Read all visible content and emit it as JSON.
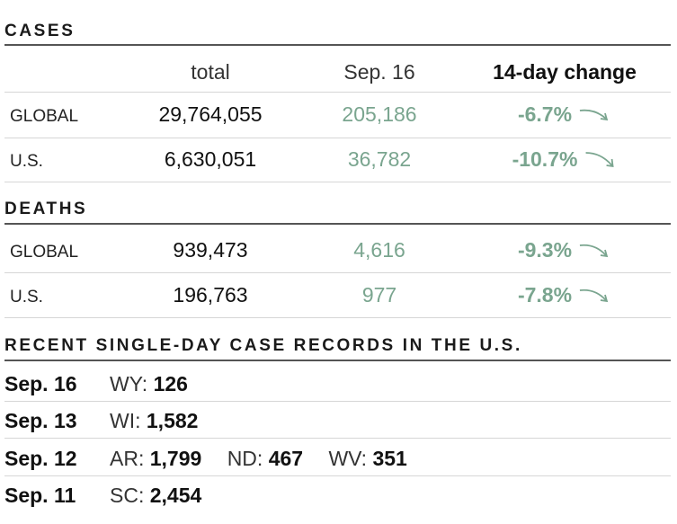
{
  "cases": {
    "title": "CASES",
    "headers": {
      "total": "total",
      "day": "Sep. 16",
      "change": "14-day change"
    },
    "rows": [
      {
        "label": "GLOBAL",
        "total": "29,764,055",
        "day": "205,186",
        "change": "-6.7%"
      },
      {
        "label": "U.S.",
        "total": "6,630,051",
        "day": "36,782",
        "change": "-10.7%"
      }
    ]
  },
  "deaths": {
    "title": "DEATHS",
    "rows": [
      {
        "label": "GLOBAL",
        "total": "939,473",
        "day": "4,616",
        "change": "-9.3%"
      },
      {
        "label": "U.S.",
        "total": "196,763",
        "day": "977",
        "change": "-7.8%"
      }
    ]
  },
  "records": {
    "title": "RECENT SINGLE-DAY CASE RECORDS IN THE U.S.",
    "rows": [
      {
        "date": "Sep. 16",
        "entries": [
          {
            "state": "WY:",
            "value": "126"
          }
        ]
      },
      {
        "date": "Sep. 13",
        "entries": [
          {
            "state": "WI:",
            "value": "1,582"
          }
        ]
      },
      {
        "date": "Sep. 12",
        "entries": [
          {
            "state": "AR:",
            "value": "1,799"
          },
          {
            "state": "ND:",
            "value": "467"
          },
          {
            "state": "WV:",
            "value": "351"
          }
        ]
      },
      {
        "date": "Sep. 11",
        "entries": [
          {
            "state": "SC:",
            "value": "2,454"
          }
        ]
      }
    ]
  },
  "colors": {
    "green": "#7aa58f",
    "rule": "#555555",
    "divider": "#d6d6d6"
  },
  "icons": {
    "trend": "trend-down-arrow-icon"
  }
}
